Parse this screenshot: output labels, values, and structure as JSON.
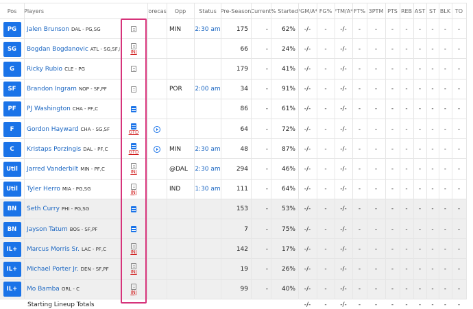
{
  "header": [
    "Pos",
    "Players",
    "Forecast",
    "Opp",
    "Status",
    "Pre-Season",
    "Current",
    "% Started",
    "FGM/A*",
    "FG%",
    "FTM/A*",
    "FT%",
    "3PTM",
    "PTS",
    "REB",
    "AST",
    "ST",
    "BLK",
    "TO"
  ],
  "rows": [
    {
      "pos": "PG",
      "name": "Jalen Brunson",
      "team": "DAL - PG,SG",
      "note_new": false,
      "forecast": false,
      "opp": "MIN",
      "status": "2:30 am",
      "preseason": 175,
      "current": "-",
      "started": "62%",
      "reserve": false,
      "stats": [
        "-/-",
        "-",
        "-/-",
        "-",
        "-",
        "-",
        "-",
        "-",
        "-",
        "-",
        "-"
      ]
    },
    {
      "pos": "SG",
      "name": "Bogdan Bogdanovic",
      "team": "ATL - SG,SF,PF",
      "tag": "INJ",
      "note_new": false,
      "forecast": false,
      "preseason": 66,
      "current": "-",
      "started": "24%",
      "reserve": false,
      "stats": [
        "-/-",
        "-",
        "-/-",
        "-",
        "-",
        "-",
        "-",
        "-",
        "-",
        "-",
        "-"
      ]
    },
    {
      "pos": "G",
      "name": "Ricky Rubio",
      "team": "CLE - PG",
      "note_new": false,
      "forecast": false,
      "preseason": 179,
      "current": "-",
      "started": "41%",
      "reserve": false,
      "stats": [
        "-/-",
        "-",
        "-/-",
        "-",
        "-",
        "-",
        "-",
        "-",
        "-",
        "-",
        "-"
      ]
    },
    {
      "pos": "SF",
      "name": "Brandon Ingram",
      "team": "NOP - SF,PF",
      "note_new": false,
      "forecast": false,
      "opp": "POR",
      "status": "2:00 am",
      "preseason": 34,
      "current": "-",
      "started": "91%",
      "reserve": false,
      "stats": [
        "-/-",
        "-",
        "-/-",
        "-",
        "-",
        "-",
        "-",
        "-",
        "-",
        "-",
        "-"
      ]
    },
    {
      "pos": "PF",
      "name": "PJ Washington",
      "team": "CHA - PF,C",
      "note_new": true,
      "forecast": false,
      "preseason": 86,
      "current": "-",
      "started": "61%",
      "reserve": false,
      "stats": [
        "-/-",
        "-",
        "-/-",
        "-",
        "-",
        "-",
        "-",
        "-",
        "-",
        "-",
        "-"
      ]
    },
    {
      "pos": "F",
      "name": "Gordon Hayward",
      "team": "CHA - SG,SF",
      "tag": "GTD",
      "note_new": true,
      "forecast": true,
      "preseason": 64,
      "current": "-",
      "started": "72%",
      "reserve": false,
      "stats": [
        "-/-",
        "-",
        "-/-",
        "-",
        "-",
        "-",
        "-",
        "-",
        "-",
        "-",
        "-"
      ]
    },
    {
      "pos": "C",
      "name": "Kristaps Porzingis",
      "team": "DAL - PF,C",
      "tag": "GTD",
      "note_new": true,
      "forecast": true,
      "opp": "MIN",
      "status": "2:30 am",
      "preseason": 48,
      "current": "-",
      "started": "87%",
      "reserve": false,
      "stats": [
        "-/-",
        "-",
        "-/-",
        "-",
        "-",
        "-",
        "-",
        "-",
        "-",
        "-",
        "-"
      ]
    },
    {
      "pos": "Util",
      "name": "Jarred Vanderbilt",
      "team": "MIN - PF,C",
      "tag": "INJ",
      "note_new": false,
      "forecast": false,
      "opp": "@DAL",
      "status": "2:30 am",
      "preseason": 294,
      "current": "-",
      "started": "46%",
      "reserve": false,
      "stats": [
        "-/-",
        "-",
        "-/-",
        "-",
        "-",
        "-",
        "-",
        "-",
        "-",
        "-",
        "-"
      ]
    },
    {
      "pos": "Util",
      "name": "Tyler Herro",
      "team": "MIA - PG,SG",
      "tag": "INJ",
      "note_new": false,
      "forecast": false,
      "opp": "IND",
      "status": "1:30 am",
      "preseason": 111,
      "current": "-",
      "started": "64%",
      "reserve": false,
      "stats": [
        "-/-",
        "-",
        "-/-",
        "-",
        "-",
        "-",
        "-",
        "-",
        "-",
        "-",
        "-"
      ]
    },
    {
      "pos": "BN",
      "name": "Seth Curry",
      "team": "PHI - PG,SG",
      "note_new": true,
      "forecast": false,
      "preseason": 153,
      "current": "-",
      "started": "53%",
      "reserve": true,
      "stats": [
        "-/-",
        "-",
        "-/-",
        "-",
        "-",
        "-",
        "-",
        "-",
        "-",
        "-",
        "-"
      ]
    },
    {
      "pos": "BN",
      "name": "Jayson Tatum",
      "team": "BOS - SF,PF",
      "note_new": true,
      "forecast": false,
      "preseason": 7,
      "current": "-",
      "started": "75%",
      "reserve": true,
      "stats": [
        "-/-",
        "-",
        "-/-",
        "-",
        "-",
        "-",
        "-",
        "-",
        "-",
        "-",
        "-"
      ]
    },
    {
      "pos": "IL+",
      "name": "Marcus Morris Sr.",
      "team": "LAC - PF,C",
      "tag": "INJ",
      "note_new": false,
      "forecast": false,
      "preseason": 142,
      "current": "-",
      "started": "17%",
      "reserve": true,
      "stats": [
        "-/-",
        "-",
        "-/-",
        "-",
        "-",
        "-",
        "-",
        "-",
        "-",
        "-",
        "-"
      ]
    },
    {
      "pos": "IL+",
      "name": "Michael Porter Jr.",
      "team": "DEN - SF,PF",
      "tag": "INJ",
      "note_new": false,
      "forecast": false,
      "preseason": 19,
      "current": "-",
      "started": "26%",
      "reserve": true,
      "stats": [
        "-/-",
        "-",
        "-/-",
        "-",
        "-",
        "-",
        "-",
        "-",
        "-",
        "-",
        "-"
      ]
    },
    {
      "pos": "IL+",
      "name": "Mo Bamba",
      "team": "ORL - C",
      "tag": "INJ",
      "note_new": false,
      "forecast": false,
      "preseason": 99,
      "current": "-",
      "started": "40%",
      "reserve": true,
      "stats": [
        "-/-",
        "-",
        "-/-",
        "-",
        "-",
        "-",
        "-",
        "-",
        "-",
        "-",
        "-"
      ]
    }
  ],
  "totals": {
    "label": "Starting Lineup Totals",
    "stats": [
      "-/-",
      "-",
      "-/-",
      "-",
      "-",
      "-",
      "-",
      "-",
      "-",
      "-",
      "-"
    ]
  }
}
